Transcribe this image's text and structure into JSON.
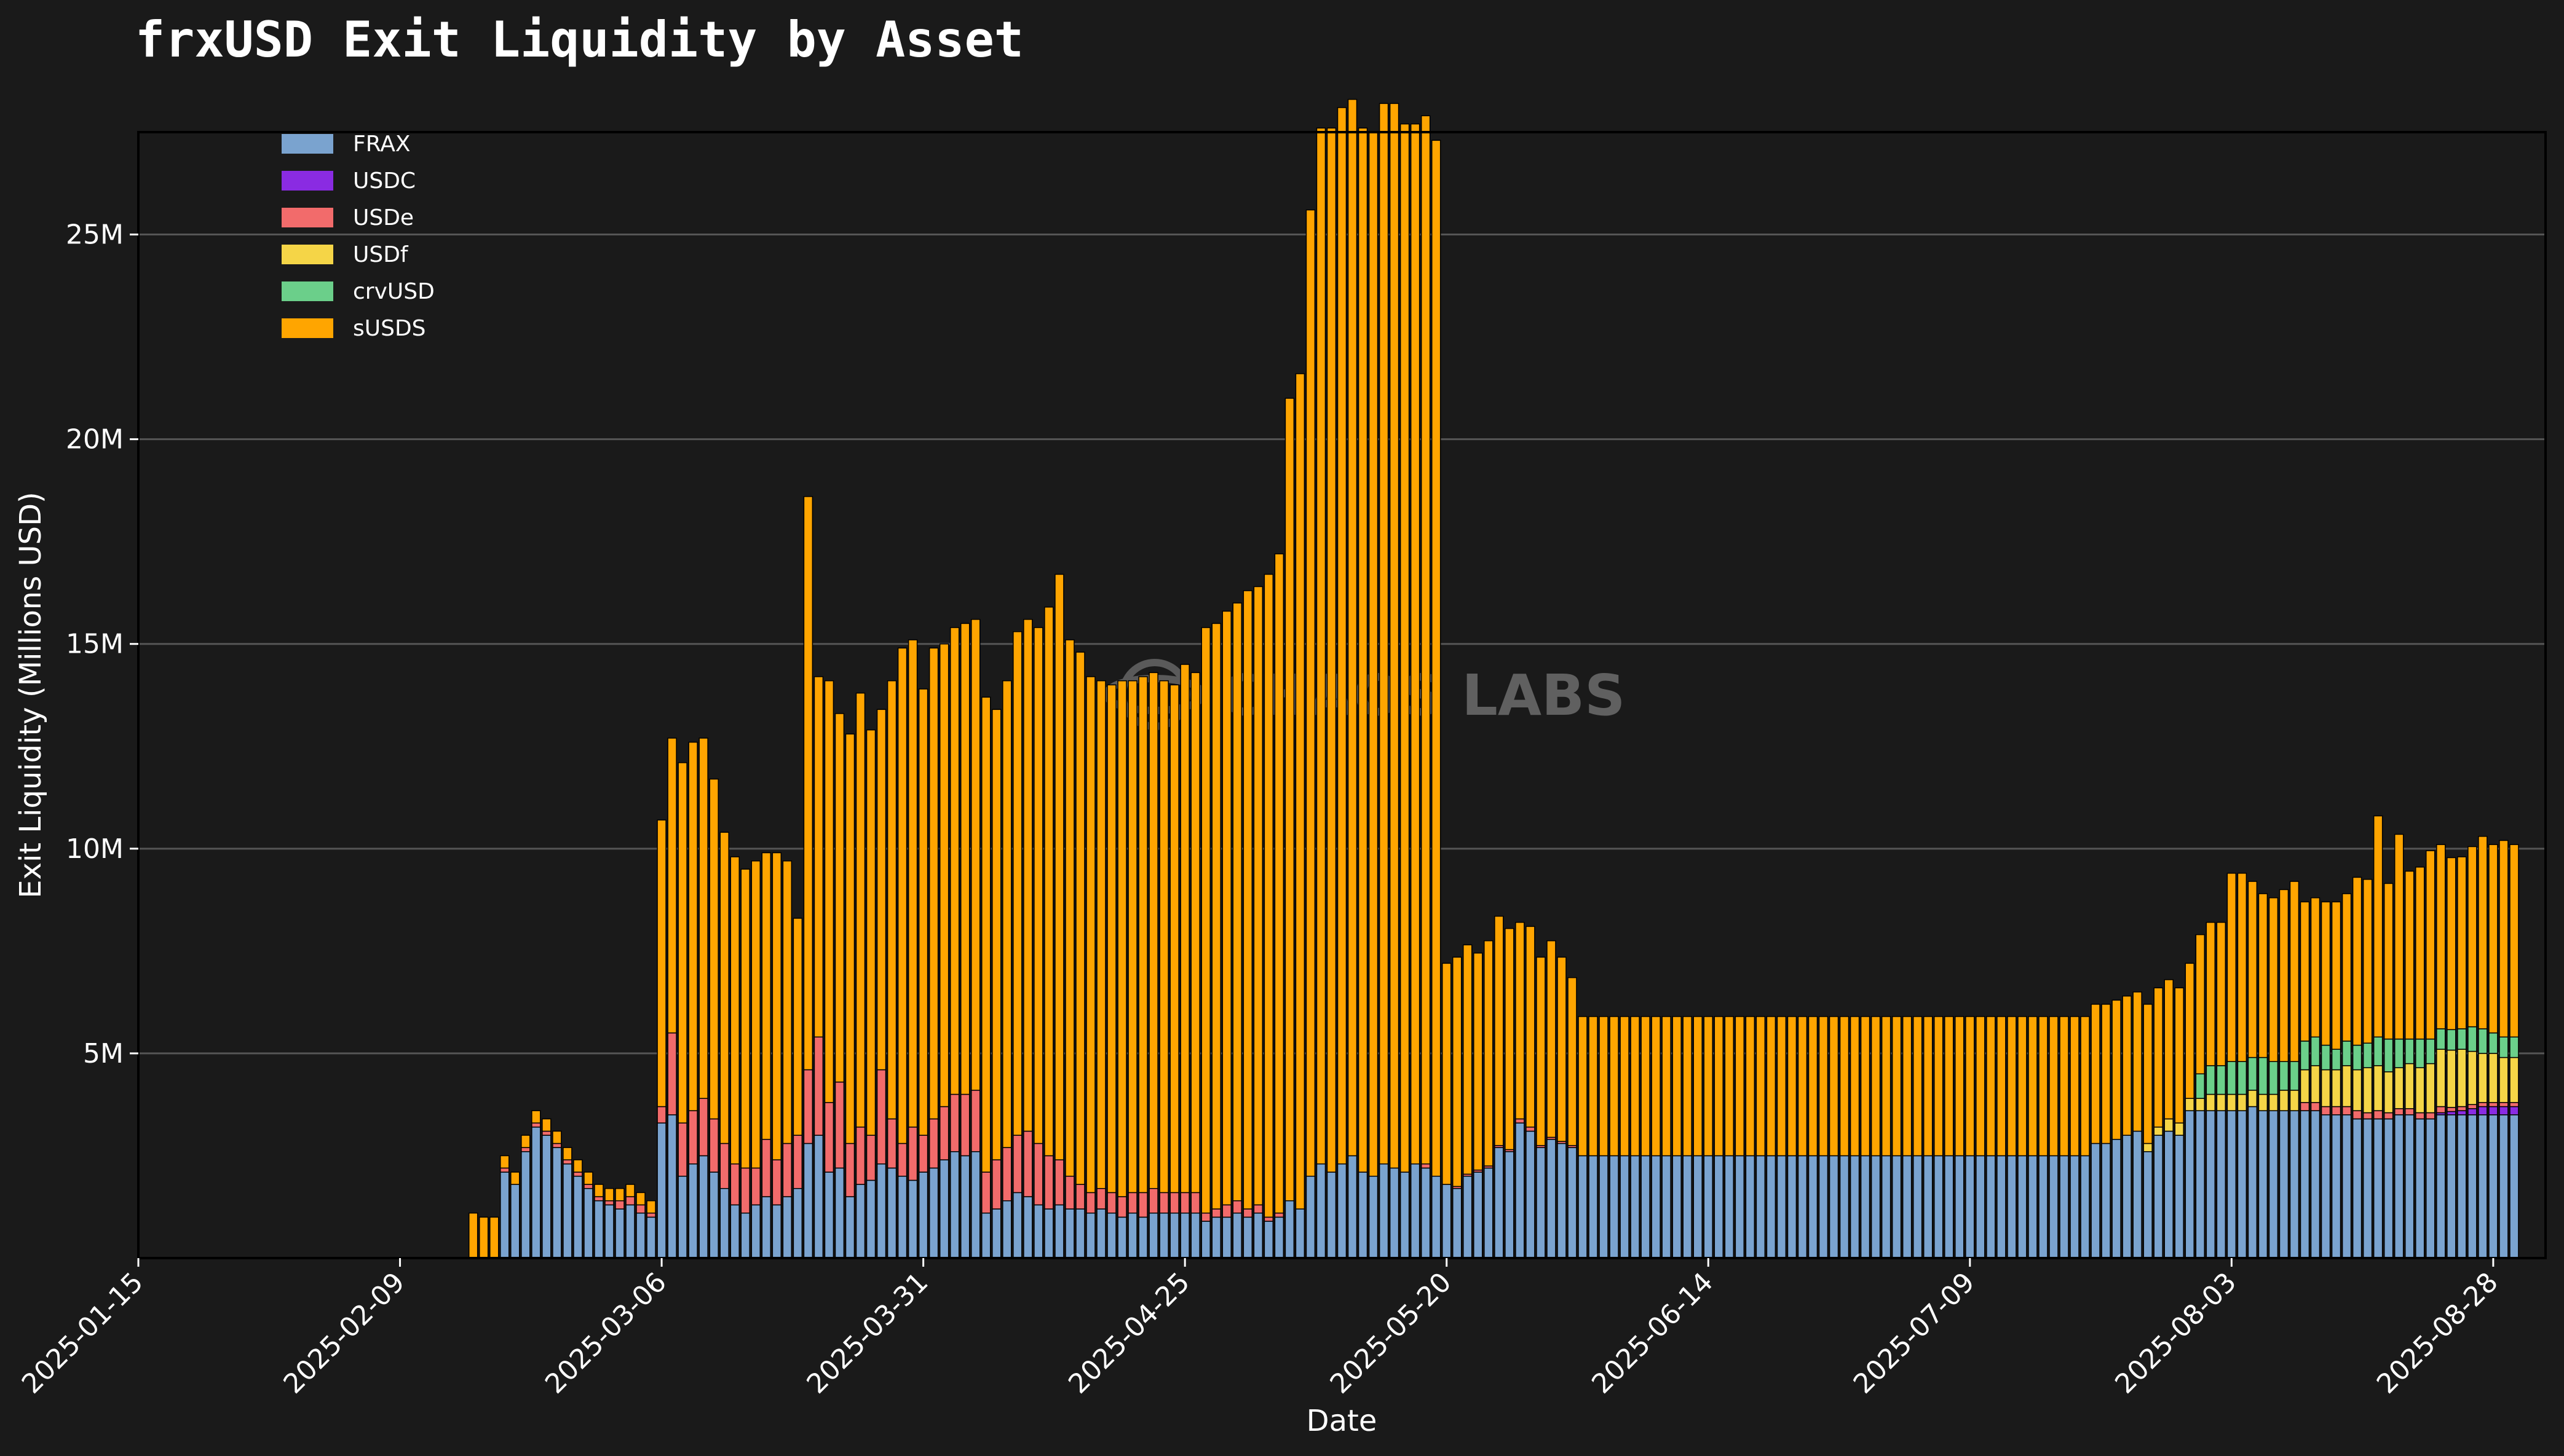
{
  "chart_data": {
    "type": "bar",
    "stacked": true,
    "title": "frxUSD Exit Liquidity by Asset",
    "xlabel": "Date",
    "ylabel": "Exit Liquidity (Millions USD)",
    "ylim": [
      0,
      27500000
    ],
    "y_ticks": [
      {
        "value": 5000000,
        "label": "5M"
      },
      {
        "value": 10000000,
        "label": "10M"
      },
      {
        "value": 15000000,
        "label": "15M"
      },
      {
        "value": 20000000,
        "label": "20M"
      },
      {
        "value": 25000000,
        "label": "25M"
      }
    ],
    "x_range": [
      "2025-01-15",
      "2025-09-02"
    ],
    "x_ticks": [
      "2025-01-15",
      "2025-02-09",
      "2025-03-06",
      "2025-03-31",
      "2025-04-25",
      "2025-05-20",
      "2025-06-14",
      "2025-07-09",
      "2025-08-03",
      "2025-08-28"
    ],
    "grid": "horizontal",
    "legend": "top-left",
    "watermark": "CHAOS LABS",
    "start_date": "2025-02-10",
    "series": [
      {
        "name": "FRAX",
        "color": "#7aa3cf",
        "values": [
          0,
          0,
          0,
          0,
          0,
          0,
          0,
          0,
          0,
          2.1,
          1.8,
          2.6,
          3.2,
          3,
          2.7,
          2.3,
          2,
          1.7,
          1.4,
          1.3,
          1.2,
          1.3,
          1.1,
          1,
          3.3,
          3.5,
          2,
          2.3,
          2.5,
          2.1,
          1.7,
          1.3,
          1.1,
          1.3,
          1.5,
          1.3,
          1.5,
          1.7,
          2.8,
          3,
          2.1,
          2.2,
          1.5,
          1.8,
          1.9,
          2.3,
          2.2,
          2,
          1.9,
          2.1,
          2.2,
          2.4,
          2.6,
          2.5,
          2.6,
          1.1,
          1.2,
          1.4,
          1.6,
          1.5,
          1.3,
          1.2,
          1.3,
          1.2,
          1.2,
          1.1,
          1.2,
          1.1,
          1,
          1.1,
          1,
          1.1,
          1.1,
          1.1,
          1.1,
          1.1,
          0.9,
          1,
          1,
          1.1,
          1,
          1.1,
          0.9,
          1,
          1.4,
          1.2,
          2,
          2.3,
          2.1,
          2.3,
          2.5,
          2.1,
          2,
          2.3,
          2.2,
          2.1,
          2.3,
          2.2,
          2,
          1.8,
          1.7,
          2,
          2.1,
          2.2,
          2.7,
          2.6,
          3.3,
          3.1,
          2.7,
          2.9,
          2.8,
          2.7,
          2.5,
          2.5,
          2.5,
          2.5,
          2.5,
          2.5,
          2.5,
          2.5,
          2.5,
          2.5,
          2.5,
          2.5,
          2.5,
          2.5,
          2.5,
          2.5,
          2.5,
          2.5,
          2.5,
          2.5,
          2.5,
          2.5,
          2.5,
          2.5,
          2.5,
          2.5,
          2.5,
          2.5,
          2.5,
          2.5,
          2.5,
          2.5,
          2.5,
          2.5,
          2.5,
          2.5,
          2.5,
          2.5,
          2.5,
          2.5,
          2.5,
          2.5,
          2.5,
          2.5,
          2.5,
          2.5,
          2.5,
          2.5,
          2.5,
          2.8,
          2.8,
          2.9,
          3,
          3.1,
          2.6,
          3,
          3.1,
          3,
          3.6,
          3.6,
          3.6,
          3.6,
          3.6,
          3.6,
          3.7,
          3.6,
          3.6,
          3.6,
          3.6,
          3.6,
          3.6,
          3.5,
          3.5,
          3.5,
          3.4,
          3.4,
          3.4,
          3.4,
          3.5,
          3.5,
          3.4,
          3.4,
          3.5,
          3.5,
          3.5,
          3.5,
          3.5,
          3.5,
          3.5,
          3.5
        ]
      },
      {
        "name": "USDC",
        "color": "#8a2be2",
        "values": [
          0,
          0,
          0,
          0,
          0,
          0,
          0,
          0,
          0,
          0,
          0,
          0,
          0,
          0,
          0,
          0,
          0,
          0,
          0,
          0,
          0,
          0,
          0,
          0,
          0,
          0,
          0,
          0,
          0,
          0,
          0,
          0,
          0,
          0,
          0,
          0,
          0,
          0,
          0,
          0,
          0,
          0,
          0,
          0,
          0,
          0,
          0,
          0,
          0,
          0,
          0,
          0,
          0,
          0,
          0,
          0,
          0,
          0,
          0,
          0,
          0,
          0,
          0,
          0,
          0,
          0,
          0,
          0,
          0,
          0,
          0,
          0,
          0,
          0,
          0,
          0,
          0,
          0,
          0,
          0,
          0,
          0,
          0,
          0,
          0,
          0,
          0,
          0,
          0,
          0,
          0,
          0,
          0,
          0,
          0,
          0,
          0,
          0,
          0,
          0,
          0,
          0,
          0,
          0,
          0,
          0,
          0,
          0,
          0,
          0,
          0,
          0,
          0,
          0,
          0,
          0,
          0,
          0,
          0,
          0,
          0,
          0,
          0,
          0,
          0,
          0,
          0,
          0,
          0,
          0,
          0,
          0,
          0,
          0,
          0,
          0,
          0,
          0,
          0,
          0,
          0,
          0,
          0,
          0,
          0,
          0,
          0,
          0,
          0,
          0,
          0,
          0,
          0,
          0,
          0,
          0,
          0,
          0,
          0,
          0,
          0,
          0,
          0,
          0,
          0,
          0,
          0,
          0,
          0,
          0,
          0,
          0,
          0,
          0,
          0,
          0,
          0,
          0,
          0,
          0,
          0,
          0,
          0,
          0,
          0,
          0,
          0,
          0,
          0,
          0,
          0,
          0,
          0,
          0,
          0.05,
          0.08,
          0.1,
          0.15,
          0.2,
          0.2,
          0.2,
          0.2
        ]
      },
      {
        "name": "USDe",
        "color": "#f26b6b",
        "values": [
          0,
          0,
          0,
          0,
          0,
          0,
          0,
          0,
          0,
          0.1,
          0,
          0.1,
          0.1,
          0.1,
          0.1,
          0.1,
          0.1,
          0.1,
          0.1,
          0.1,
          0.2,
          0.2,
          0.2,
          0.1,
          0.4,
          2,
          1.3,
          1.3,
          1.4,
          1.3,
          1.1,
          1,
          1.1,
          0.9,
          1.4,
          1.1,
          1.3,
          1.3,
          1.8,
          2.4,
          1.7,
          2.1,
          1.3,
          1.4,
          1.1,
          2.3,
          1.2,
          0.8,
          1.3,
          0.9,
          1.2,
          1.3,
          1.4,
          1.5,
          1.5,
          1,
          1.2,
          1.3,
          1.4,
          1.6,
          1.5,
          1.3,
          1.1,
          0.8,
          0.6,
          0.5,
          0.5,
          0.5,
          0.5,
          0.5,
          0.6,
          0.6,
          0.5,
          0.5,
          0.5,
          0.5,
          0.2,
          0.2,
          0.3,
          0.3,
          0.2,
          0.2,
          0.1,
          0.1,
          0,
          0,
          0,
          0,
          0,
          0,
          0,
          0,
          0,
          0,
          0,
          0,
          0,
          0.1,
          0,
          0,
          0.05,
          0.05,
          0.05,
          0.05,
          0.05,
          0.05,
          0.1,
          0.1,
          0.05,
          0.05,
          0.05,
          0.05,
          0,
          0,
          0,
          0,
          0,
          0,
          0,
          0,
          0,
          0,
          0,
          0,
          0,
          0,
          0,
          0,
          0,
          0,
          0,
          0,
          0,
          0,
          0,
          0,
          0,
          0,
          0,
          0,
          0,
          0,
          0,
          0,
          0,
          0,
          0,
          0,
          0,
          0,
          0,
          0,
          0,
          0,
          0,
          0,
          0,
          0,
          0,
          0,
          0,
          0,
          0,
          0,
          0,
          0,
          0,
          0,
          0,
          0,
          0,
          0,
          0,
          0,
          0,
          0,
          0,
          0,
          0,
          0,
          0,
          0.2,
          0.2,
          0.2,
          0.2,
          0.2,
          0.2,
          0.15,
          0.2,
          0.15,
          0.15,
          0.15,
          0.15,
          0.15,
          0.15,
          0.1,
          0.1,
          0.1,
          0.1,
          0.1,
          0.1,
          0.1,
          0.1,
          0.1,
          0.1,
          0.1,
          0.1,
          0.1,
          0.1,
          0.1,
          0.1,
          0.1,
          0.1
        ]
      },
      {
        "name": "USDf",
        "color": "#f5d547",
        "values": [
          0,
          0,
          0,
          0,
          0,
          0,
          0,
          0,
          0,
          0,
          0,
          0,
          0,
          0,
          0,
          0,
          0,
          0,
          0,
          0,
          0,
          0,
          0,
          0,
          0,
          0,
          0,
          0,
          0,
          0,
          0,
          0,
          0,
          0,
          0,
          0,
          0,
          0,
          0,
          0,
          0,
          0,
          0,
          0,
          0,
          0,
          0,
          0,
          0,
          0,
          0,
          0,
          0,
          0,
          0,
          0,
          0,
          0,
          0,
          0,
          0,
          0,
          0,
          0,
          0,
          0,
          0,
          0,
          0,
          0,
          0,
          0,
          0,
          0,
          0,
          0,
          0,
          0,
          0,
          0,
          0,
          0,
          0,
          0,
          0,
          0,
          0,
          0,
          0,
          0,
          0,
          0,
          0,
          0,
          0,
          0,
          0,
          0,
          0,
          0,
          0,
          0,
          0,
          0,
          0,
          0,
          0,
          0,
          0,
          0,
          0,
          0,
          0,
          0,
          0,
          0,
          0,
          0,
          0,
          0,
          0,
          0,
          0,
          0,
          0,
          0,
          0,
          0,
          0,
          0,
          0,
          0,
          0,
          0,
          0,
          0,
          0,
          0,
          0,
          0,
          0,
          0,
          0,
          0,
          0,
          0,
          0,
          0,
          0,
          0,
          0,
          0,
          0,
          0,
          0,
          0,
          0,
          0,
          0,
          0,
          0,
          0,
          0,
          0,
          0,
          0,
          0.2,
          0.2,
          0.3,
          0.3,
          0.3,
          0.3,
          0.4,
          0.4,
          0.4,
          0.4,
          0.4,
          0.4,
          0.4,
          0.5,
          0.5,
          0.8,
          0.9,
          0.9,
          0.9,
          1,
          1,
          1.1,
          1.1,
          1,
          1,
          1.1,
          1.1,
          1.2,
          1.4,
          1.4,
          1.4,
          1.3,
          1.2,
          1.2,
          1.1,
          1.1,
          1.2,
          1.3,
          1.4,
          1.4
        ]
      },
      {
        "name": "crvUSD",
        "color": "#6bcf8a",
        "values": [
          0,
          0,
          0,
          0,
          0,
          0,
          0,
          0,
          0,
          0,
          0,
          0,
          0,
          0,
          0,
          0,
          0,
          0,
          0,
          0,
          0,
          0,
          0,
          0,
          0,
          0,
          0,
          0,
          0,
          0,
          0,
          0,
          0,
          0,
          0,
          0,
          0,
          0,
          0,
          0,
          0,
          0,
          0,
          0,
          0,
          0,
          0,
          0,
          0,
          0,
          0,
          0,
          0,
          0,
          0,
          0,
          0,
          0,
          0,
          0,
          0,
          0,
          0,
          0,
          0,
          0,
          0,
          0,
          0,
          0,
          0,
          0,
          0,
          0,
          0,
          0,
          0,
          0,
          0,
          0,
          0,
          0,
          0,
          0,
          0,
          0,
          0,
          0,
          0,
          0,
          0,
          0,
          0,
          0,
          0,
          0,
          0,
          0,
          0,
          0,
          0,
          0,
          0,
          0,
          0,
          0,
          0,
          0,
          0,
          0,
          0,
          0,
          0,
          0,
          0,
          0,
          0,
          0,
          0,
          0,
          0,
          0,
          0,
          0,
          0,
          0,
          0,
          0,
          0,
          0,
          0,
          0,
          0,
          0,
          0,
          0,
          0,
          0,
          0,
          0,
          0,
          0,
          0,
          0,
          0,
          0,
          0,
          0,
          0,
          0,
          0,
          0,
          0,
          0,
          0,
          0,
          0,
          0,
          0,
          0,
          0,
          0,
          0,
          0,
          0,
          0,
          0,
          0,
          0,
          0,
          0,
          0.6,
          0.7,
          0.7,
          0.8,
          0.8,
          0.8,
          0.9,
          0.8,
          0.7,
          0.7,
          0.7,
          0.7,
          0.6,
          0.5,
          0.6,
          0.6,
          0.6,
          0.7,
          0.8,
          0.7,
          0.6,
          0.7,
          0.6,
          0.5,
          0.5,
          0.5,
          0.6,
          0.6,
          0.5,
          0.5,
          0.5,
          0.5,
          0.5,
          0.5,
          0.4,
          0.4,
          0.4,
          0.4,
          0.4,
          0.4
        ]
      },
      {
        "name": "sUSDS",
        "color": "#ffa500",
        "values": [
          0,
          0,
          0,
          0,
          0,
          0,
          1.1,
          1,
          1,
          0.3,
          0.3,
          0.3,
          0.3,
          0.3,
          0.3,
          0.3,
          0.3,
          0.3,
          0.3,
          0.3,
          0.3,
          0.3,
          0.3,
          0.3,
          7,
          7.2,
          8.8,
          9,
          8.8,
          8.3,
          7.6,
          7.5,
          7.3,
          7.5,
          7,
          7.5,
          6.9,
          5.3,
          14,
          8.8,
          10.3,
          9,
          10,
          10.6,
          9.9,
          8.8,
          10.7,
          12.1,
          11.9,
          10.9,
          11.5,
          11.3,
          11.4,
          11.5,
          11.5,
          11.6,
          11,
          11.4,
          12.3,
          12.5,
          12.6,
          13.4,
          14.3,
          13.1,
          13,
          12.6,
          12.4,
          12.4,
          12.6,
          12.5,
          12.6,
          12.6,
          12.5,
          12.4,
          12.9,
          12.7,
          14.3,
          14.3,
          14.5,
          14.6,
          15.1,
          15.1,
          15.7,
          16.1,
          19.6,
          20.4,
          23.6,
          25.3,
          25.5,
          25.8,
          25.8,
          25.5,
          25.5,
          25.9,
          26,
          25.6,
          25.4,
          25.6,
          25.3,
          5.4,
          5.6,
          5.6,
          5.3,
          5.5,
          5.6,
          5.4,
          4.8,
          4.9,
          4.6,
          4.8,
          4.5,
          4.1,
          3.4,
          3.4,
          3.4,
          3.4,
          3.4,
          3.4,
          3.4,
          3.4,
          3.4,
          3.4,
          3.4,
          3.4,
          3.4,
          3.4,
          3.4,
          3.4,
          3.4,
          3.4,
          3.4,
          3.4,
          3.4,
          3.4,
          3.4,
          3.4,
          3.4,
          3.4,
          3.4,
          3.4,
          3.4,
          3.4,
          3.4,
          3.4,
          3.4,
          3.4,
          3.4,
          3.4,
          3.4,
          3.4,
          3.4,
          3.4,
          3.4,
          3.4,
          3.4,
          3.4,
          3.4,
          3.4,
          3.4,
          3.4,
          3.4,
          3.4,
          3.4,
          3.4,
          3.4,
          3.4,
          3.4,
          3.4,
          3.4,
          3.3,
          3.3,
          3.4,
          3.5,
          3.5,
          4.6,
          4.6,
          4.3,
          4,
          4,
          4.2,
          4.4,
          3.4,
          3.4,
          3.5,
          3.6,
          3.6,
          4.1,
          4,
          5.4,
          3.8,
          5,
          4.1,
          4.2,
          4.6,
          4.5,
          4.2,
          4.2,
          4.4,
          4.7,
          4.6,
          4.8,
          4.7,
          4.7,
          4.2,
          4.2,
          4.3,
          4.2,
          4,
          4,
          4
        ]
      }
    ]
  }
}
